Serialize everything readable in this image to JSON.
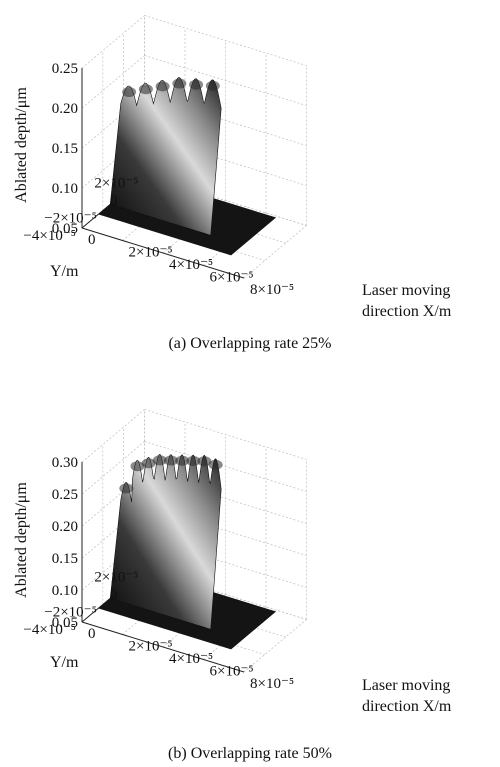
{
  "chart_data": [
    {
      "type": "surface3d",
      "caption": "(a) Overlapping rate 25%",
      "z_label": "Ablated depth/μm",
      "x_label_line1": "Laser moving",
      "x_label_line2": "direction X/m",
      "y_label": "Y/m",
      "z_ticks": [
        "0.05",
        "0.10",
        "0.15",
        "0.20",
        "0.25"
      ],
      "x_ticks": [
        "0",
        "2×10⁻⁵",
        "4×10⁻⁵",
        "6×10⁻⁵",
        "8×10⁻⁵"
      ],
      "y_ticks": [
        "2×10⁻⁵",
        "0",
        "−2×10⁻⁵",
        "−4×10⁻⁵"
      ],
      "z_range": [
        0.05,
        0.25
      ],
      "x_range": [
        0,
        8e-05
      ],
      "y_range": [
        -4e-05,
        2e-05
      ],
      "pulses": 6,
      "peak_depths": [
        0.19,
        0.2,
        0.21,
        0.22,
        0.225,
        0.23
      ],
      "baseline_depth": 0.05,
      "grid": true
    },
    {
      "type": "surface3d",
      "caption": "(b) Overlapping rate 50%",
      "z_label": "Ablated depth/μm",
      "x_label_line1": "Laser moving",
      "x_label_line2": "direction X/m",
      "y_label": "Y/m",
      "z_ticks": [
        "0.05",
        "0.10",
        "0.15",
        "0.20",
        "0.25",
        "0.30"
      ],
      "x_ticks": [
        "0",
        "2×10⁻⁵",
        "4×10⁻⁵",
        "6×10⁻⁵",
        "8×10⁻⁵"
      ],
      "y_ticks": [
        "2×10⁻⁵",
        "0",
        "−2×10⁻⁵",
        "−4×10⁻⁵"
      ],
      "z_range": [
        0.05,
        0.3
      ],
      "x_range": [
        0,
        8e-05
      ],
      "y_range": [
        -4e-05,
        2e-05
      ],
      "pulses": 9,
      "peak_depths": [
        0.22,
        0.26,
        0.27,
        0.28,
        0.285,
        0.29,
        0.295,
        0.3,
        0.3
      ],
      "baseline_depth": 0.05,
      "grid": true
    }
  ]
}
